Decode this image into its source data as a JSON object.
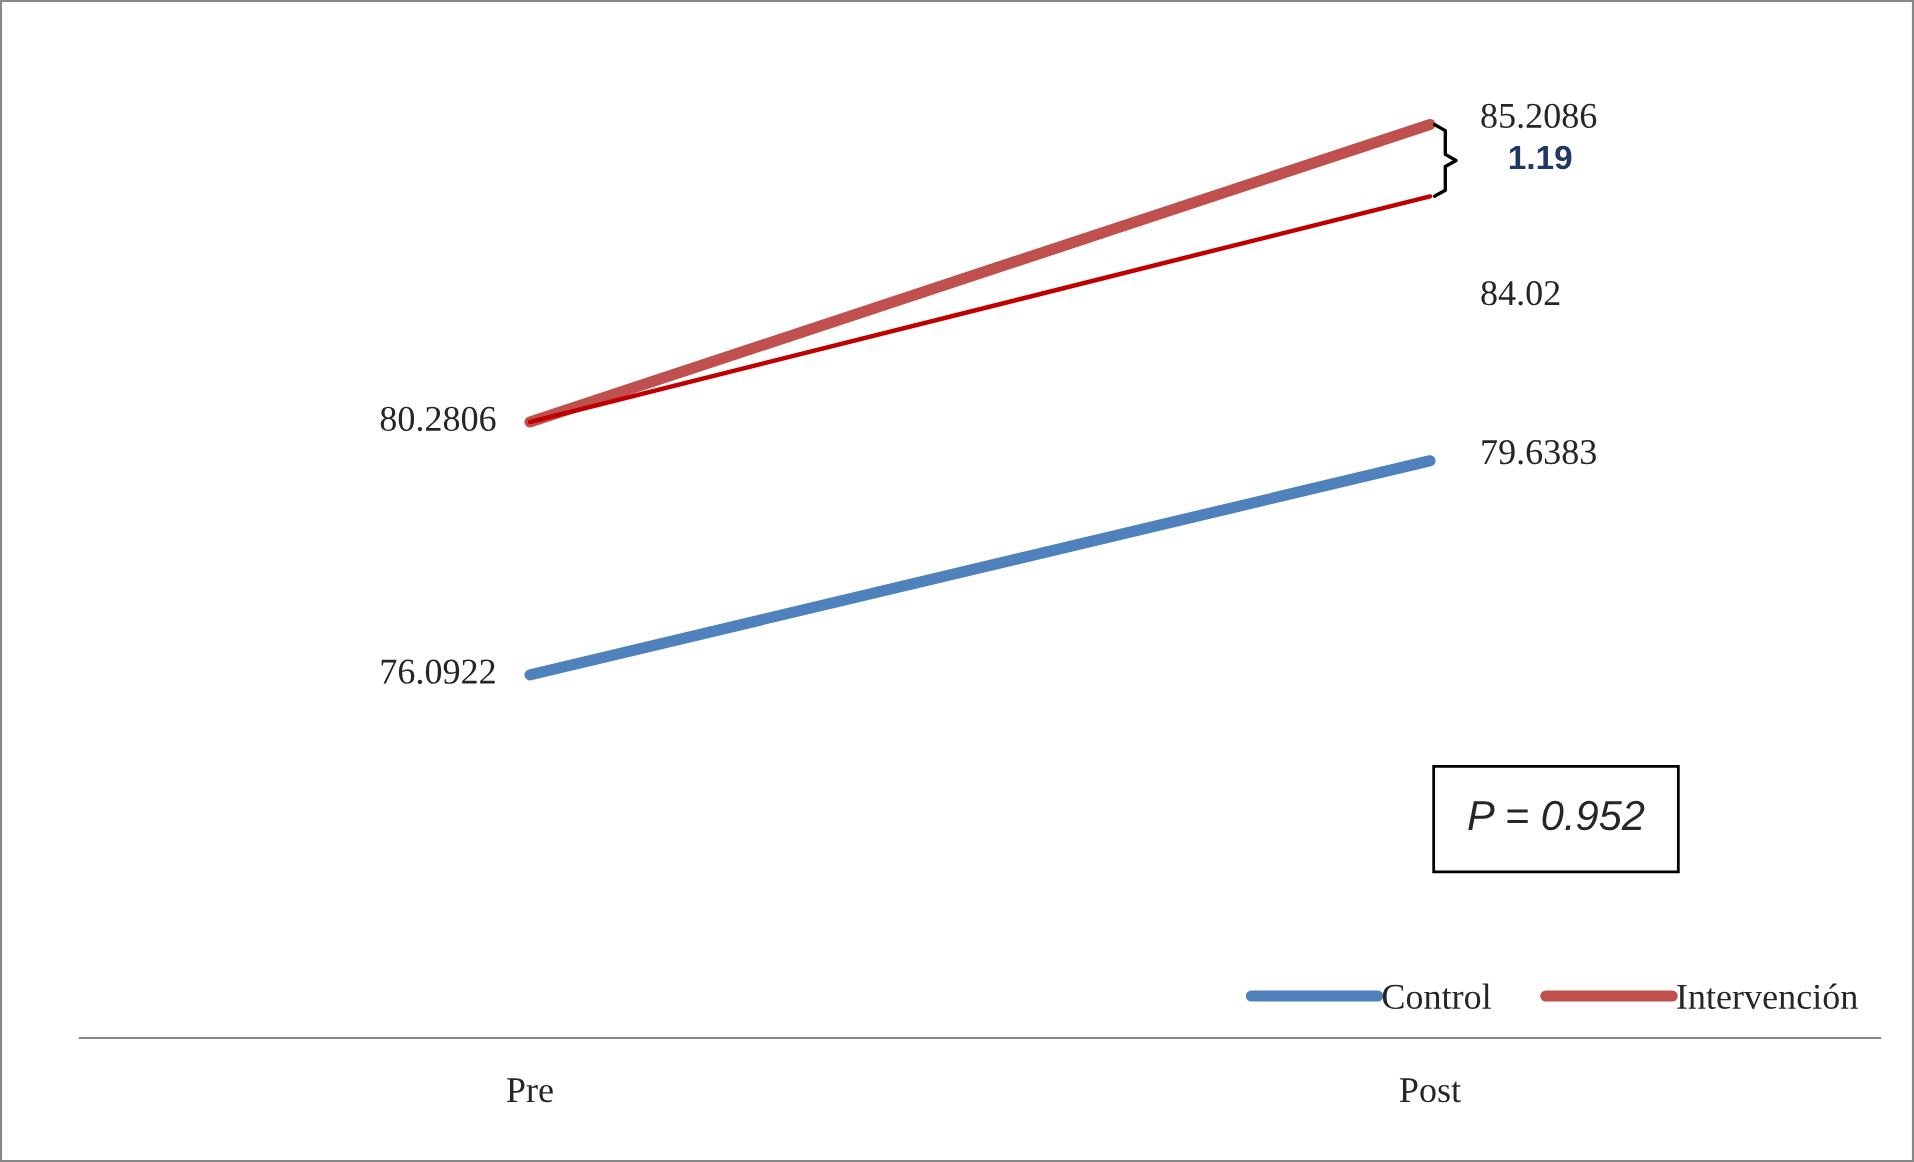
{
  "chart_data": {
    "type": "line",
    "categories": [
      "Pre",
      "Post"
    ],
    "series": [
      {
        "name": "Control",
        "color": "#4f81bd",
        "values": [
          76.0922,
          79.6383
        ],
        "value_labels": [
          "76.0922",
          "79.6383"
        ]
      },
      {
        "name": "Intervención",
        "color": "#c0504d",
        "values": [
          80.2806,
          85.2086
        ],
        "value_labels": [
          "80.2806",
          "85.2086"
        ]
      },
      {
        "color": "#c00000",
        "values": [
          80.2806,
          84.02
        ],
        "value_labels": [
          null,
          "84.02"
        ]
      }
    ],
    "relative": false,
    "annotations": [
      "1.19",
      "P = 0.952"
    ],
    "legend": "bottom right",
    "tick_labels": "x",
    "grid": false,
    "marker": "none",
    "line_style": "solid"
  }
}
